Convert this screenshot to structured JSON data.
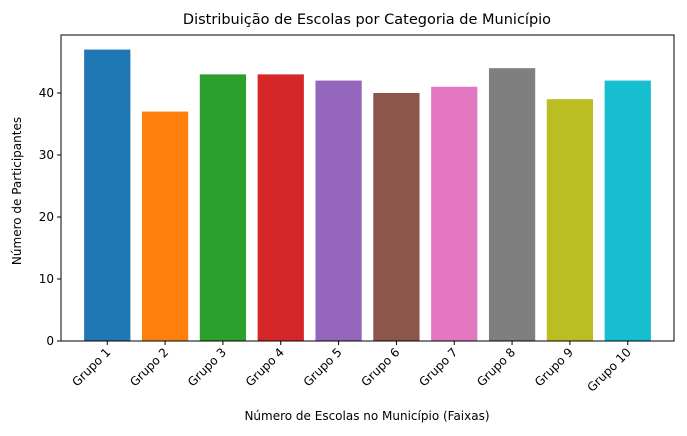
{
  "chart_data": {
    "type": "bar",
    "title": "Distribuição de Escolas por Categoria de Município",
    "xlabel": "Número de Escolas no Município (Faixas)",
    "ylabel": "Número de Participantes",
    "categories": [
      "Grupo 1",
      "Grupo 2",
      "Grupo 3",
      "Grupo 4",
      "Grupo 5",
      "Grupo 6",
      "Grupo 7",
      "Grupo 8",
      "Grupo 9",
      "Grupo 10"
    ],
    "values": [
      47,
      37,
      43,
      43,
      42,
      40,
      41,
      44,
      39,
      42
    ],
    "colors": [
      "#1f77b4",
      "#ff7f0e",
      "#2ca02c",
      "#d62728",
      "#9467bd",
      "#8c564b",
      "#e377c2",
      "#7f7f7f",
      "#bcbd22",
      "#17becf"
    ],
    "ylim": [
      0,
      49.35
    ],
    "yticks": [
      0,
      10,
      20,
      30,
      40
    ],
    "grid": false,
    "legend": "none"
  }
}
